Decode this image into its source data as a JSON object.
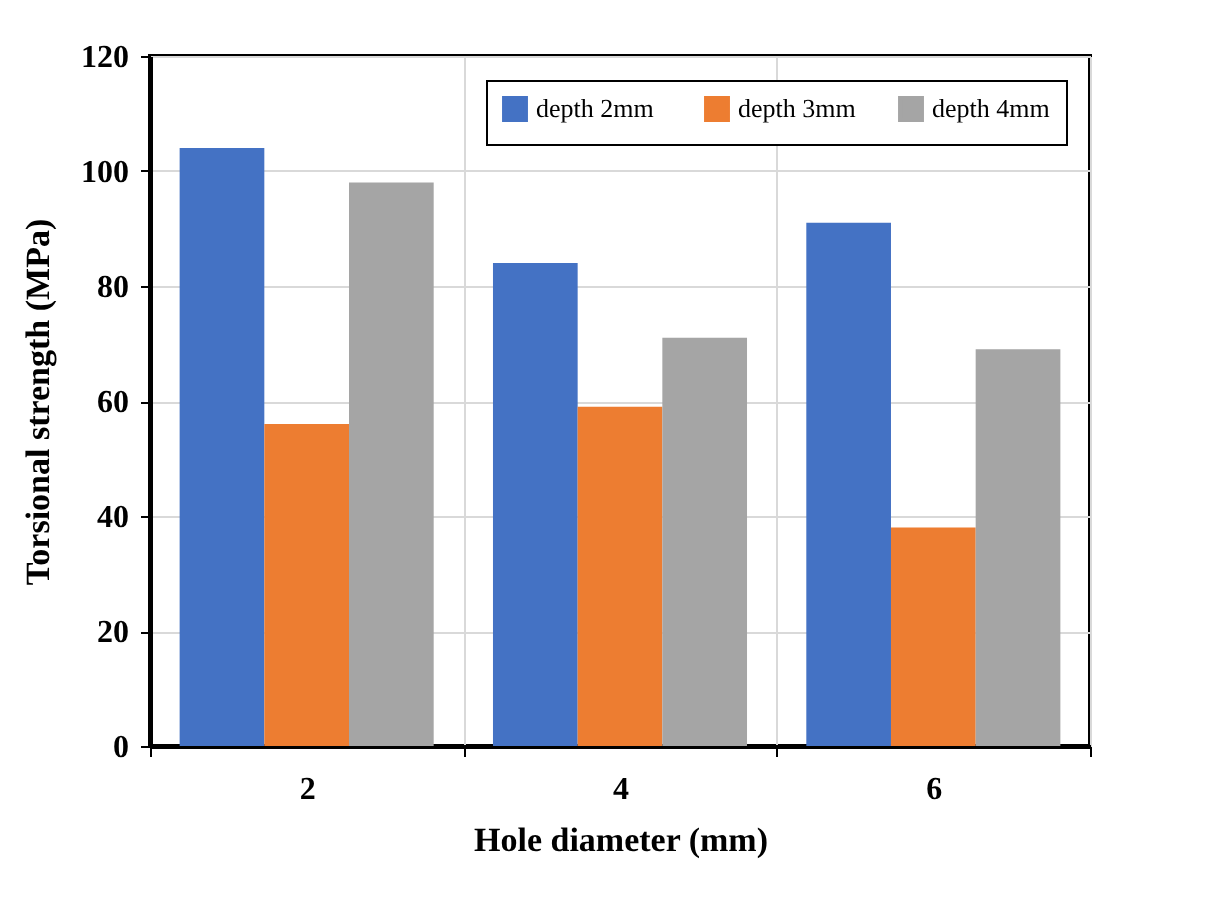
{
  "chart_data": {
    "type": "bar",
    "xlabel": "Hole diameter (mm)",
    "ylabel": "Torsional  strength (MPa)",
    "categories": [
      "2",
      "4",
      "6"
    ],
    "series": [
      {
        "name": "depth  2mm",
        "color": "#4472c4",
        "values": [
          104,
          84,
          91
        ]
      },
      {
        "name": "depth 3mm",
        "color": "#ed7d31",
        "values": [
          56,
          59,
          38
        ]
      },
      {
        "name": "depth 4mm",
        "color": "#a5a5a5",
        "values": [
          98,
          71,
          69
        ]
      }
    ],
    "ylim": [
      0,
      120
    ],
    "yticks": [
      0,
      20,
      40,
      60,
      80,
      100,
      120
    ],
    "grid": true,
    "legend": "top right"
  }
}
